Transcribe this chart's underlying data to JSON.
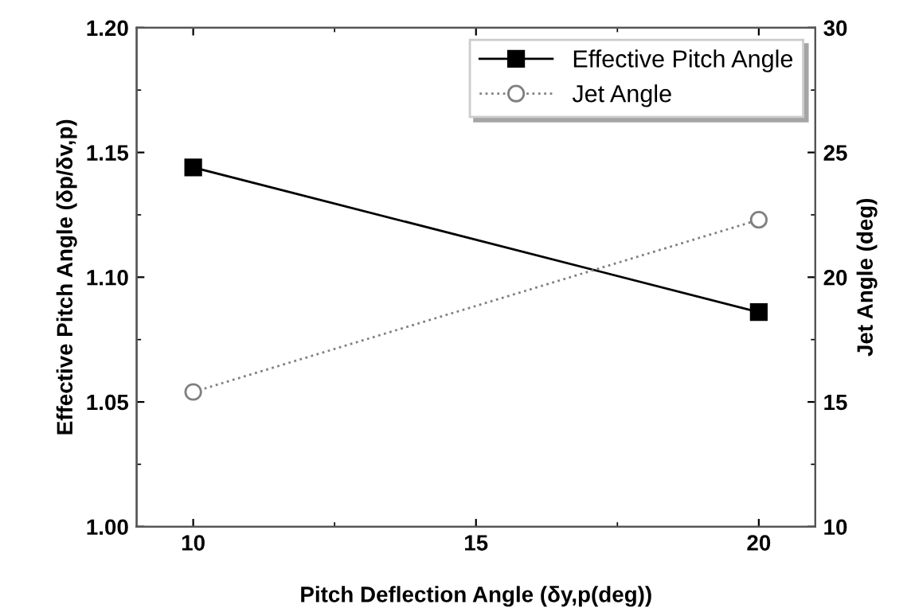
{
  "chart_data": {
    "type": "line",
    "xlabel": "Pitch Deflection Angle (δy,p(deg))",
    "ylabel": "Effective Pitch Angle (δp/δv,p)",
    "y2label": "Jet Angle (deg)",
    "x": [
      10,
      20
    ],
    "series": [
      {
        "name": "Effective Pitch Angle",
        "color": "#000000",
        "values": [
          1.144,
          1.086
        ],
        "marker": "square",
        "line_style": "solid"
      },
      {
        "name": "Jet Angle",
        "color": "#808080",
        "values": [
          15.4,
          22.3
        ],
        "marker": "circle",
        "line_style": "dotted",
        "axis": "y2"
      }
    ],
    "xlim": [
      9,
      21
    ],
    "xticks": [
      10,
      15,
      20
    ],
    "ylim": [
      1.0,
      1.2
    ],
    "yticks": [
      {
        "value": 1.0,
        "label": "1.00"
      },
      {
        "value": 1.05,
        "label": "1.05"
      },
      {
        "value": 1.1,
        "label": "1.10"
      },
      {
        "value": 1.15,
        "label": "1.15"
      },
      {
        "value": 1.2,
        "label": "1.20"
      }
    ],
    "y2lim": [
      10,
      30
    ],
    "y2ticks": [
      10,
      15,
      20,
      25,
      30
    ],
    "legend": "top right",
    "grid": false
  }
}
